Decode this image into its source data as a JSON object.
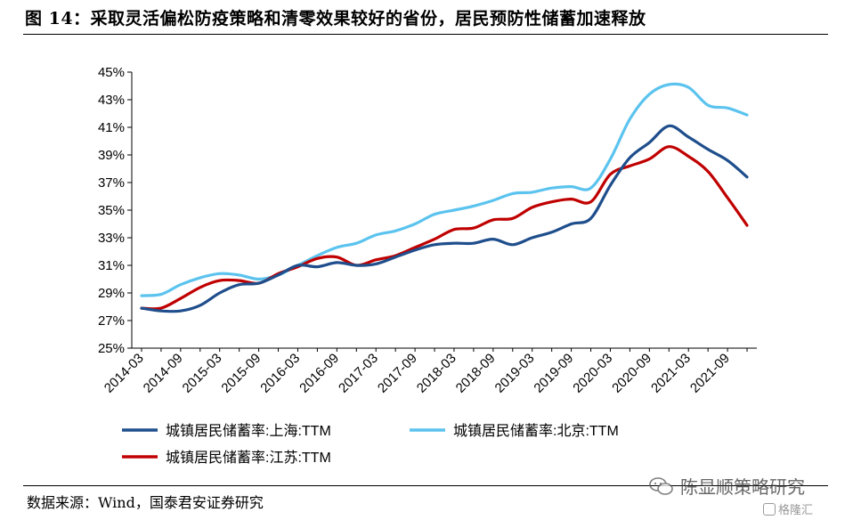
{
  "title": "图 14：采取灵活偏松防疫策略和清零效果较好的省份，居民预防性储蓄加速释放",
  "source": "数据来源：Wind，国泰君安证券研究",
  "watermark": {
    "text": "陈显顺策略研究",
    "icon": "wechat-icon",
    "sub_text": "格隆汇",
    "sub_icon": "gelonghui-icon"
  },
  "chart_data": {
    "type": "line",
    "title": "",
    "xlabel": "",
    "ylabel": "",
    "ylim": [
      25,
      45
    ],
    "yticks": [
      "25%",
      "27%",
      "29%",
      "31%",
      "33%",
      "35%",
      "37%",
      "39%",
      "41%",
      "43%",
      "45%"
    ],
    "xticks": [
      "2014-03",
      "2014-09",
      "2015-03",
      "2015-09",
      "2016-03",
      "2016-09",
      "2017-03",
      "2017-09",
      "2018-03",
      "2018-09",
      "2019-03",
      "2019-09",
      "2020-03",
      "2020-09",
      "2021-03",
      "2021-09"
    ],
    "x": [
      "2014-03",
      "2014-06",
      "2014-09",
      "2014-12",
      "2015-03",
      "2015-06",
      "2015-09",
      "2015-12",
      "2016-03",
      "2016-06",
      "2016-09",
      "2016-12",
      "2017-03",
      "2017-06",
      "2017-09",
      "2017-12",
      "2018-03",
      "2018-06",
      "2018-09",
      "2018-12",
      "2019-03",
      "2019-06",
      "2019-09",
      "2019-12",
      "2020-03",
      "2020-06",
      "2020-09",
      "2020-12",
      "2021-03",
      "2021-06",
      "2021-09",
      "2021-12"
    ],
    "grid": false,
    "legend_position": "bottom",
    "series": [
      {
        "name": "城镇居民储蓄率:上海:TTM",
        "color": "#1F4E8C",
        "values": [
          27.9,
          27.7,
          27.7,
          28.1,
          29.0,
          29.6,
          29.7,
          30.3,
          31.0,
          30.9,
          31.2,
          31.0,
          31.1,
          31.6,
          32.1,
          32.5,
          32.6,
          32.6,
          32.9,
          32.5,
          33.0,
          33.4,
          34.0,
          34.4,
          36.8,
          38.8,
          39.9,
          41.1,
          40.3,
          39.4,
          38.6,
          37.4
        ]
      },
      {
        "name": "城镇居民储蓄率:北京:TTM",
        "color": "#5BC3EE",
        "values": [
          28.8,
          28.9,
          29.6,
          30.1,
          30.4,
          30.3,
          30.0,
          30.3,
          31.0,
          31.7,
          32.3,
          32.6,
          33.2,
          33.5,
          34.0,
          34.7,
          35.0,
          35.3,
          35.7,
          36.2,
          36.3,
          36.6,
          36.7,
          36.6,
          38.7,
          41.6,
          43.4,
          44.1,
          43.9,
          42.6,
          42.4,
          41.9
        ]
      },
      {
        "name": "城镇居民储蓄率:江苏:TTM",
        "color": "#C00000",
        "values": [
          27.9,
          27.9,
          28.6,
          29.4,
          29.9,
          29.9,
          29.7,
          30.4,
          30.9,
          31.5,
          31.6,
          31.0,
          31.4,
          31.7,
          32.3,
          32.9,
          33.6,
          33.7,
          34.3,
          34.4,
          35.2,
          35.6,
          35.8,
          35.6,
          37.6,
          38.2,
          38.7,
          39.6,
          38.9,
          37.8,
          35.9,
          33.9
        ]
      }
    ]
  }
}
